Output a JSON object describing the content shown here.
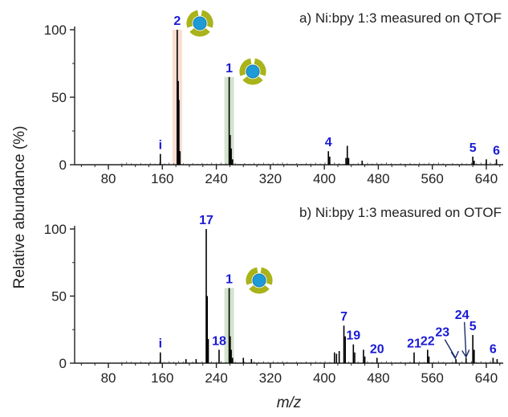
{
  "chart_data": [
    {
      "type": "bar",
      "title": "a) Ni:bpy 1:3 measured on QTOF",
      "xlim": [
        30,
        665
      ],
      "ylim": [
        0,
        100
      ],
      "xticks": [
        80,
        160,
        240,
        320,
        400,
        480,
        560,
        640
      ],
      "yticks": [
        0,
        50,
        100
      ],
      "highlights": [
        {
          "x": 182,
          "color": "#f8d9cc"
        },
        {
          "x": 259,
          "color": "#cfe0c8"
        }
      ],
      "peaks": [
        {
          "x": 157,
          "y": 8,
          "label": "i"
        },
        {
          "x": 182,
          "y": 100,
          "label": "2"
        },
        {
          "x": 183.5,
          "y": 62,
          "label": ""
        },
        {
          "x": 184.5,
          "y": 48,
          "label": ""
        },
        {
          "x": 186,
          "y": 10,
          "label": ""
        },
        {
          "x": 259,
          "y": 65,
          "label": "1"
        },
        {
          "x": 260.5,
          "y": 22,
          "label": ""
        },
        {
          "x": 262,
          "y": 12,
          "label": ""
        },
        {
          "x": 264,
          "y": 4,
          "label": ""
        },
        {
          "x": 406,
          "y": 10,
          "label": "4"
        },
        {
          "x": 408,
          "y": 6,
          "label": ""
        },
        {
          "x": 432,
          "y": 5,
          "label": ""
        },
        {
          "x": 434,
          "y": 14,
          "label": ""
        },
        {
          "x": 436,
          "y": 5,
          "label": ""
        },
        {
          "x": 456,
          "y": 3,
          "label": ""
        },
        {
          "x": 620,
          "y": 6,
          "label": "5"
        },
        {
          "x": 622,
          "y": 3,
          "label": ""
        },
        {
          "x": 640,
          "y": 4,
          "label": ""
        },
        {
          "x": 655,
          "y": 4,
          "label": "6"
        }
      ]
    },
    {
      "type": "bar",
      "title": "b) Ni:bpy 1:3 measured on OTOF",
      "xlabel": "m/z",
      "xlim": [
        30,
        665
      ],
      "ylim": [
        0,
        100
      ],
      "xticks": [
        80,
        160,
        240,
        320,
        400,
        480,
        560,
        640
      ],
      "yticks": [
        0,
        50,
        100
      ],
      "highlights": [
        {
          "x": 259,
          "color": "#cfe0c8"
        }
      ],
      "peaks": [
        {
          "x": 157,
          "y": 8,
          "label": "i"
        },
        {
          "x": 195,
          "y": 3,
          "label": ""
        },
        {
          "x": 210,
          "y": 3,
          "label": ""
        },
        {
          "x": 225,
          "y": 100,
          "label": "17"
        },
        {
          "x": 226.5,
          "y": 50,
          "label": ""
        },
        {
          "x": 228,
          "y": 18,
          "label": ""
        },
        {
          "x": 244,
          "y": 10,
          "label": "18"
        },
        {
          "x": 259,
          "y": 56,
          "label": "1"
        },
        {
          "x": 260.5,
          "y": 20,
          "label": ""
        },
        {
          "x": 262,
          "y": 10,
          "label": ""
        },
        {
          "x": 264,
          "y": 4,
          "label": ""
        },
        {
          "x": 280,
          "y": 4,
          "label": ""
        },
        {
          "x": 292,
          "y": 3,
          "label": ""
        },
        {
          "x": 415,
          "y": 8,
          "label": ""
        },
        {
          "x": 418,
          "y": 7,
          "label": ""
        },
        {
          "x": 422,
          "y": 9,
          "label": ""
        },
        {
          "x": 429,
          "y": 28,
          "label": "7"
        },
        {
          "x": 431,
          "y": 20,
          "label": ""
        },
        {
          "x": 443,
          "y": 14,
          "label": "19"
        },
        {
          "x": 445,
          "y": 8,
          "label": ""
        },
        {
          "x": 458,
          "y": 10,
          "label": ""
        },
        {
          "x": 460,
          "y": 5,
          "label": ""
        },
        {
          "x": 478,
          "y": 4,
          "label": "20"
        },
        {
          "x": 533,
          "y": 8,
          "label": "21"
        },
        {
          "x": 553,
          "y": 10,
          "label": "22"
        },
        {
          "x": 555,
          "y": 5,
          "label": ""
        },
        {
          "x": 595,
          "y": 3,
          "label": ""
        },
        {
          "x": 610,
          "y": 4,
          "label": ""
        },
        {
          "x": 620,
          "y": 21,
          "label": "5"
        },
        {
          "x": 622,
          "y": 10,
          "label": ""
        },
        {
          "x": 650,
          "y": 4,
          "label": "6"
        },
        {
          "x": 656,
          "y": 3,
          "label": ""
        }
      ],
      "annotations": [
        {
          "label": "23",
          "x": 575,
          "y": 20,
          "target_x": 594,
          "target_y": 3
        },
        {
          "label": "24",
          "x": 604,
          "y": 33,
          "target_x": 610,
          "target_y": 4
        }
      ]
    }
  ],
  "ylabel": "Relative abundance (%)"
}
